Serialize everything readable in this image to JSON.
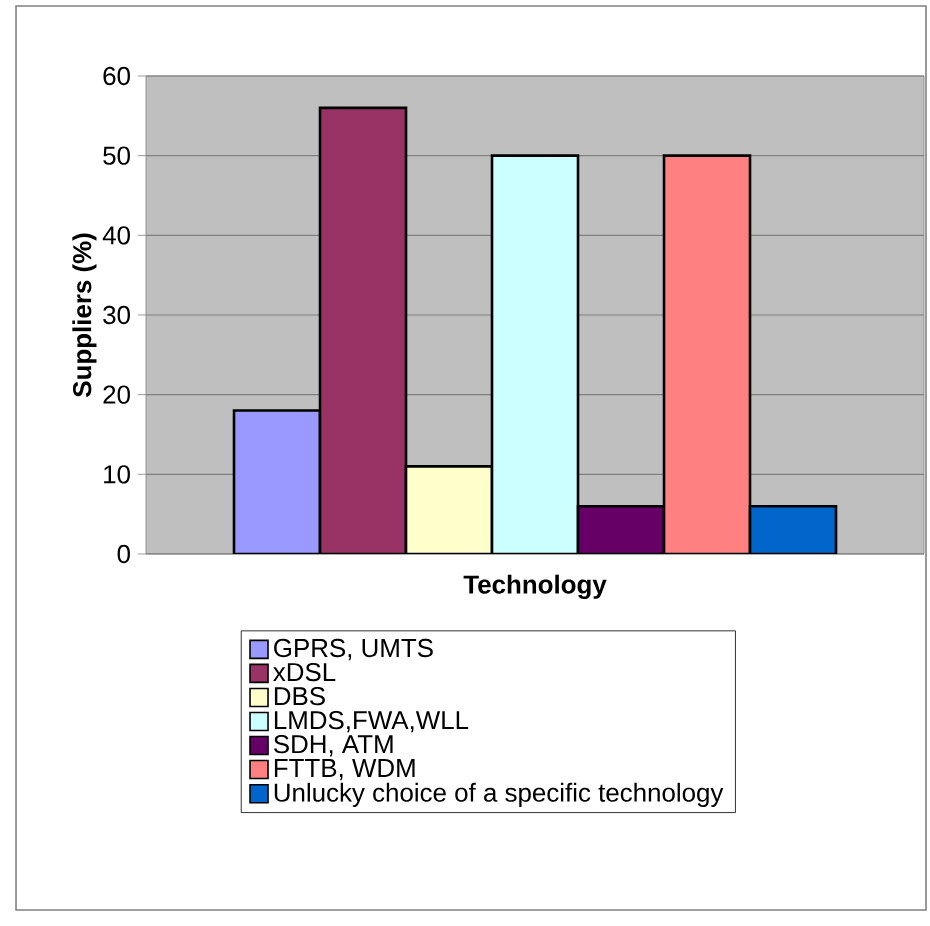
{
  "chart_data": {
    "type": "bar",
    "xlabel": "Technology",
    "ylabel": "Suppliers (%)",
    "categories": [
      null
    ],
    "series": [
      {
        "name": "GPRS, UMTS",
        "color": "#9999ff",
        "values": [
          18
        ]
      },
      {
        "name": "xDSL",
        "color": "#993366",
        "values": [
          56
        ]
      },
      {
        "name": "DBS",
        "color": "#ffffcc",
        "values": [
          11
        ]
      },
      {
        "name": "LMDS,FWA,WLL",
        "color": "#ccffff",
        "values": [
          50
        ]
      },
      {
        "name": "SDH, ATM",
        "color": "#660066",
        "values": [
          6
        ]
      },
      {
        "name": "FTTB, WDM",
        "color": "#ff8080",
        "values": [
          50
        ]
      },
      {
        "name": "Unlucky choice of a specific technology",
        "color": "#0066cc",
        "values": [
          6
        ]
      }
    ],
    "ylim": [
      0,
      60
    ],
    "yticks": [
      0,
      10,
      20,
      30,
      40,
      50,
      60
    ],
    "grid": "y",
    "legend": "bottom"
  }
}
